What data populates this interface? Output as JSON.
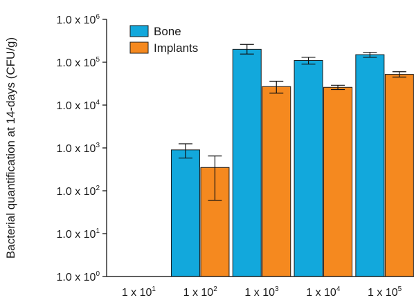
{
  "chart_data": {
    "type": "bar",
    "ylabel": "Bacterial quantification at 14-days (CFU/g)",
    "xlabel": "",
    "y_scale": "log",
    "ylim": [
      1,
      1000000
    ],
    "y_ticks": [
      {
        "base": "1.0 x 10",
        "exp": "0"
      },
      {
        "base": "1.0 x 10",
        "exp": "1"
      },
      {
        "base": "1.0 x 10",
        "exp": "2"
      },
      {
        "base": "1.0 x 10",
        "exp": "3"
      },
      {
        "base": "1.0 x 10",
        "exp": "4"
      },
      {
        "base": "1.0 x 10",
        "exp": "5"
      },
      {
        "base": "1.0 x 10",
        "exp": "6"
      }
    ],
    "categories": [
      {
        "base": "1 x 10",
        "exp": "1"
      },
      {
        "base": "1 x 10",
        "exp": "2"
      },
      {
        "base": "1 x 10",
        "exp": "3"
      },
      {
        "base": "1 x 10",
        "exp": "4"
      },
      {
        "base": "1 x 10",
        "exp": "5"
      }
    ],
    "series": [
      {
        "name": "Bone",
        "color": "#12a8dc",
        "values": [
          null,
          900,
          200000,
          110000,
          150000
        ],
        "err_low": [
          null,
          580,
          155000,
          90000,
          130000
        ],
        "err_high": [
          null,
          1250,
          260000,
          130000,
          170000
        ]
      },
      {
        "name": "Implants",
        "color": "#f5891f",
        "values": [
          null,
          350,
          27000,
          26000,
          52000
        ],
        "err_low": [
          null,
          60,
          19000,
          23000,
          45000
        ],
        "err_high": [
          null,
          650,
          36000,
          29000,
          60000
        ]
      }
    ],
    "legend_position": "top-left",
    "grid": false
  }
}
